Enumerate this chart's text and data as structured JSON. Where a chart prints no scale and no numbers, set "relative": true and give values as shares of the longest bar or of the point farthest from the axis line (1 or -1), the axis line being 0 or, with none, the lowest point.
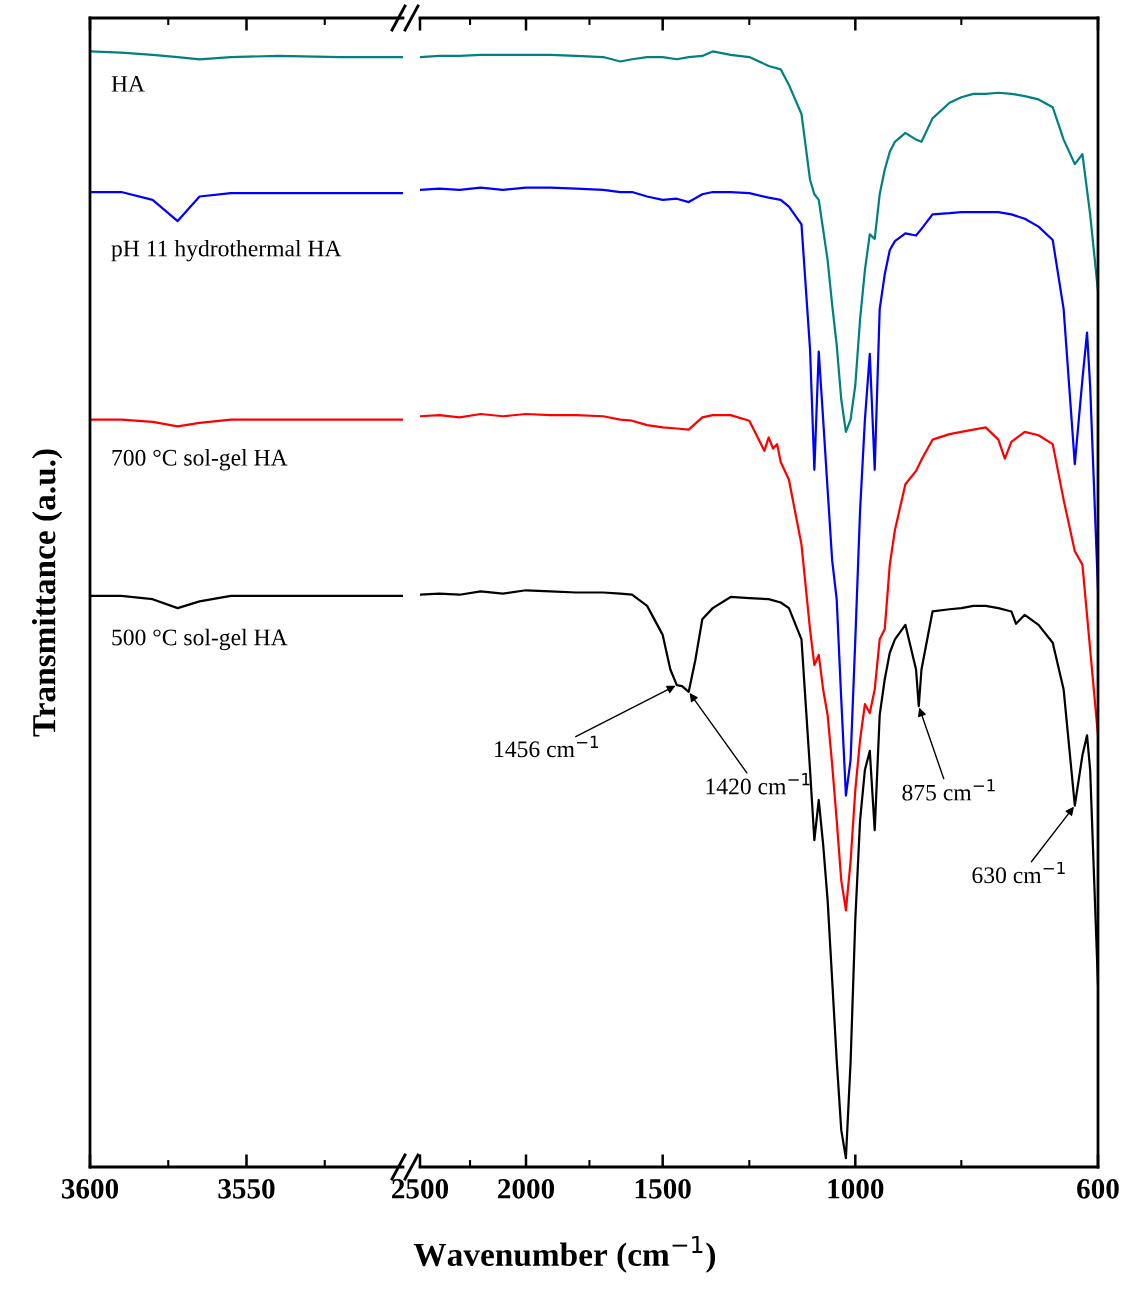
{
  "chart_data": [
    {
      "type": "line",
      "relative": true,
      "ylabel": "Transmittance (a.u.)",
      "xlim": [
        3600,
        3500
      ],
      "xticks": [
        3600,
        {
          "value": 3575,
          "label": null
        },
        3550,
        {
          "value": 3525,
          "label": null
        }
      ],
      "series": [
        {
          "name": "HA",
          "color": "#008080",
          "x": [
            3600,
            3590,
            3580,
            3572,
            3565,
            3555,
            3540,
            3520,
            3500
          ],
          "values": [
            1.0,
            0.999,
            0.997,
            0.995,
            0.993,
            0.995,
            0.996,
            0.995,
            0.995
          ]
        },
        {
          "name": "pH 11 hydrothermal HA",
          "color": "#0000ff",
          "x": [
            3600,
            3590,
            3580,
            3572,
            3565,
            3555,
            3540,
            3520,
            3500
          ],
          "values": [
            0.874,
            0.874,
            0.867,
            0.848,
            0.87,
            0.873,
            0.873,
            0.873,
            0.873
          ]
        },
        {
          "name": "700 °C sol-gel HA",
          "color": "#ff0000",
          "x": [
            3600,
            3590,
            3580,
            3572,
            3565,
            3555,
            3540,
            3520,
            3500
          ],
          "values": [
            0.67,
            0.67,
            0.668,
            0.664,
            0.667,
            0.67,
            0.67,
            0.67,
            0.67
          ]
        },
        {
          "name": "500 °C sol-gel HA",
          "color": "#000000",
          "x": [
            3600,
            3590,
            3580,
            3572,
            3565,
            3555,
            3540,
            3520,
            3500
          ],
          "values": [
            0.512,
            0.512,
            0.509,
            0.501,
            0.507,
            0.512,
            0.512,
            0.512,
            0.512
          ]
        }
      ]
    },
    {
      "type": "line",
      "relative": true,
      "log": "x",
      "xlabel": "Wavenumber (cm$^{−1}$)",
      "xlim": [
        2500,
        600
      ],
      "xticks": [
        2500,
        {
          "value": 2250,
          "label": null
        },
        2000,
        {
          "value": 1750,
          "label": null
        },
        1500,
        {
          "value": 1250,
          "label": null
        },
        1000,
        {
          "value": 800,
          "label": null
        },
        600
      ],
      "annotations": [
        {
          "text": "1456 cm$^{−1}$",
          "x": 1456,
          "y": 0.432
        },
        {
          "text": "1420 cm$^{−1}$",
          "x": 1420,
          "y": 0.426
        },
        {
          "text": "875 cm$^{−1}$",
          "x": 875,
          "y": 0.413
        },
        {
          "text": "630 cm$^{−1}$",
          "x": 630,
          "y": 0.324
        }
      ],
      "series": [
        {
          "color": "#008080",
          "x": [
            2500,
            2400,
            2300,
            2200,
            2100,
            2000,
            1900,
            1800,
            1700,
            1640,
            1600,
            1550,
            1500,
            1456,
            1420,
            1380,
            1350,
            1300,
            1250,
            1200,
            1170,
            1150,
            1120,
            1100,
            1090,
            1080,
            1070,
            1060,
            1050,
            1040,
            1030,
            1020,
            1010,
            1000,
            990,
            980,
            970,
            960,
            950,
            940,
            930,
            920,
            900,
            880,
            870,
            850,
            820,
            800,
            780,
            760,
            740,
            720,
            700,
            680,
            660,
            645,
            630,
            620,
            610,
            600
          ],
          "values": [
            0.995,
            0.996,
            0.996,
            0.997,
            0.997,
            0.997,
            0.997,
            0.996,
            0.995,
            0.991,
            0.993,
            0.995,
            0.995,
            0.993,
            0.995,
            0.996,
            1.0,
            0.997,
            0.995,
            0.987,
            0.984,
            0.97,
            0.944,
            0.885,
            0.872,
            0.867,
            0.84,
            0.813,
            0.773,
            0.737,
            0.688,
            0.659,
            0.67,
            0.701,
            0.76,
            0.804,
            0.836,
            0.832,
            0.872,
            0.894,
            0.91,
            0.919,
            0.927,
            0.921,
            0.919,
            0.94,
            0.954,
            0.959,
            0.962,
            0.962,
            0.963,
            0.962,
            0.96,
            0.957,
            0.95,
            0.921,
            0.899,
            0.908,
            0.854,
            0.785
          ]
        },
        {
          "color": "#0000ff",
          "x": [
            2500,
            2400,
            2300,
            2200,
            2100,
            2000,
            1900,
            1800,
            1700,
            1640,
            1600,
            1550,
            1500,
            1456,
            1420,
            1380,
            1350,
            1300,
            1250,
            1200,
            1170,
            1150,
            1120,
            1100,
            1090,
            1080,
            1070,
            1060,
            1050,
            1040,
            1030,
            1020,
            1010,
            1000,
            990,
            980,
            970,
            960,
            950,
            940,
            930,
            920,
            900,
            880,
            870,
            850,
            820,
            800,
            780,
            760,
            740,
            720,
            700,
            680,
            660,
            645,
            630,
            620,
            614,
            610,
            600
          ],
          "values": [
            0.876,
            0.877,
            0.876,
            0.878,
            0.876,
            0.878,
            0.878,
            0.877,
            0.876,
            0.874,
            0.874,
            0.87,
            0.867,
            0.868,
            0.865,
            0.872,
            0.874,
            0.874,
            0.873,
            0.869,
            0.867,
            0.861,
            0.845,
            0.733,
            0.625,
            0.731,
            0.67,
            0.607,
            0.544,
            0.509,
            0.419,
            0.333,
            0.365,
            0.473,
            0.589,
            0.67,
            0.729,
            0.625,
            0.769,
            0.8,
            0.822,
            0.83,
            0.837,
            0.835,
            0.841,
            0.854,
            0.855,
            0.856,
            0.856,
            0.856,
            0.856,
            0.854,
            0.85,
            0.843,
            0.831,
            0.769,
            0.63,
            0.706,
            0.748,
            0.7,
            0.517
          ]
        },
        {
          "color": "#ff0000",
          "x": [
            2500,
            2400,
            2300,
            2200,
            2100,
            2000,
            1900,
            1800,
            1700,
            1640,
            1600,
            1550,
            1500,
            1456,
            1420,
            1380,
            1350,
            1300,
            1250,
            1211,
            1200,
            1189,
            1179,
            1170,
            1150,
            1120,
            1100,
            1090,
            1080,
            1070,
            1060,
            1050,
            1040,
            1030,
            1020,
            1010,
            1000,
            990,
            980,
            970,
            960,
            950,
            940,
            930,
            920,
            900,
            880,
            870,
            850,
            820,
            800,
            780,
            760,
            740,
            730,
            720,
            700,
            680,
            660,
            645,
            630,
            620,
            610,
            600
          ],
          "values": [
            0.673,
            0.674,
            0.672,
            0.675,
            0.673,
            0.675,
            0.674,
            0.674,
            0.673,
            0.67,
            0.669,
            0.665,
            0.663,
            0.662,
            0.661,
            0.672,
            0.674,
            0.674,
            0.669,
            0.642,
            0.654,
            0.644,
            0.648,
            0.632,
            0.616,
            0.558,
            0.482,
            0.45,
            0.459,
            0.428,
            0.405,
            0.361,
            0.311,
            0.257,
            0.23,
            0.274,
            0.338,
            0.383,
            0.415,
            0.407,
            0.428,
            0.473,
            0.482,
            0.54,
            0.571,
            0.612,
            0.624,
            0.634,
            0.652,
            0.657,
            0.659,
            0.661,
            0.663,
            0.652,
            0.635,
            0.65,
            0.659,
            0.656,
            0.648,
            0.598,
            0.552,
            0.54,
            0.464,
            0.387
          ]
        },
        {
          "color": "#000000",
          "x": [
            2500,
            2400,
            2300,
            2200,
            2100,
            2000,
            1900,
            1800,
            1700,
            1640,
            1600,
            1550,
            1500,
            1476,
            1456,
            1440,
            1420,
            1400,
            1380,
            1350,
            1300,
            1250,
            1200,
            1170,
            1150,
            1120,
            1100,
            1090,
            1080,
            1070,
            1060,
            1050,
            1040,
            1030,
            1020,
            1010,
            1000,
            990,
            980,
            970,
            960,
            950,
            940,
            930,
            920,
            900,
            880,
            875,
            870,
            850,
            820,
            800,
            780,
            760,
            740,
            720,
            713,
            700,
            680,
            660,
            645,
            630,
            620,
            614,
            610,
            600
          ],
          "values": [
            0.513,
            0.514,
            0.513,
            0.516,
            0.514,
            0.517,
            0.516,
            0.515,
            0.515,
            0.514,
            0.513,
            0.503,
            0.477,
            0.446,
            0.432,
            0.431,
            0.426,
            0.455,
            0.491,
            0.501,
            0.511,
            0.51,
            0.509,
            0.506,
            0.501,
            0.473,
            0.356,
            0.293,
            0.329,
            0.289,
            0.239,
            0.168,
            0.096,
            0.033,
            0.008,
            0.094,
            0.222,
            0.311,
            0.356,
            0.373,
            0.302,
            0.405,
            0.437,
            0.461,
            0.473,
            0.486,
            0.446,
            0.413,
            0.446,
            0.498,
            0.5,
            0.501,
            0.503,
            0.503,
            0.501,
            0.498,
            0.487,
            0.495,
            0.486,
            0.47,
            0.428,
            0.324,
            0.369,
            0.387,
            0.356,
            0.163
          ]
        }
      ]
    }
  ]
}
